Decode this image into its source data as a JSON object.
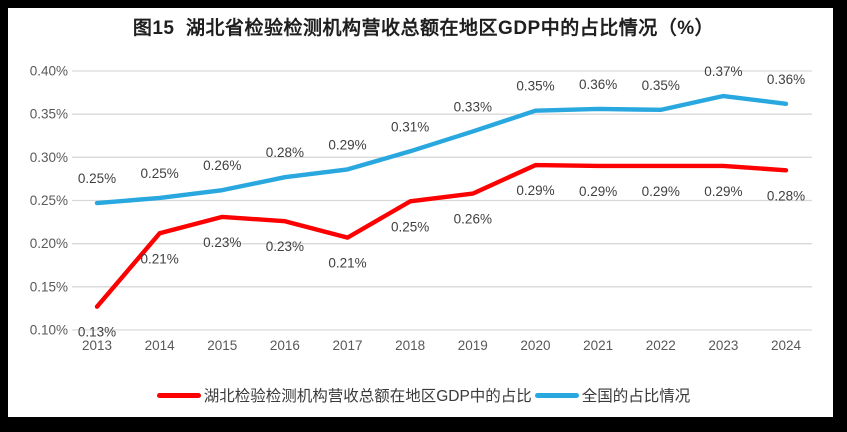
{
  "title": "图15  湖北省检验检测机构营收总额在地区GDP中的占比情况（%）",
  "colors": {
    "grid": "#D9D9D9",
    "axis_text": "#595959",
    "data_label_text": "#404040",
    "series_red": "#FE0000",
    "series_blue": "#29A8E0",
    "frame_border": "#000000",
    "background": "#FFFFFF"
  },
  "chart_data": {
    "type": "line",
    "title": "图15  湖北省检验检测机构营收总额在地区GDP中的占比情况（%）",
    "xlabel": "",
    "ylabel": "",
    "categories": [
      "2013",
      "2014",
      "2015",
      "2016",
      "2017",
      "2018",
      "2019",
      "2020",
      "2021",
      "2022",
      "2023",
      "2024"
    ],
    "y_axis": {
      "min": 0.1,
      "max": 0.4,
      "unit": "%",
      "grid": true,
      "tick_labels": [
        "0.40%",
        "0.35%",
        "0.30%",
        "0.25%",
        "0.20%",
        "0.15%",
        "0.10%"
      ],
      "tick_values": [
        0.4,
        0.35,
        0.3,
        0.25,
        0.2,
        0.15,
        0.1
      ]
    },
    "legend_position": "bottom",
    "series": [
      {
        "name": "湖北检验检测机构营收总额在地区GDP中的占比",
        "color": "#FE0000",
        "label_position": "below",
        "values": [
          0.13,
          0.21,
          0.23,
          0.23,
          0.21,
          0.25,
          0.26,
          0.29,
          0.29,
          0.29,
          0.29,
          0.28
        ],
        "labels": [
          "0.13%",
          "0.21%",
          "0.23%",
          "0.23%",
          "0.21%",
          "0.25%",
          "0.26%",
          "0.29%",
          "0.29%",
          "0.29%",
          "0.29%",
          "0.28%"
        ],
        "plot_values": [
          0.127,
          0.212,
          0.231,
          0.226,
          0.207,
          0.249,
          0.258,
          0.291,
          0.29,
          0.29,
          0.29,
          0.285
        ]
      },
      {
        "name": "全国的占比情况",
        "color": "#29A8E0",
        "label_position": "above",
        "values": [
          0.25,
          0.25,
          0.26,
          0.28,
          0.29,
          0.31,
          0.33,
          0.35,
          0.36,
          0.35,
          0.37,
          0.36
        ],
        "labels": [
          "0.25%",
          "0.25%",
          "0.26%",
          "0.28%",
          "0.29%",
          "0.31%",
          "0.33%",
          "0.35%",
          "0.36%",
          "0.35%",
          "0.37%",
          "0.36%"
        ],
        "plot_values": [
          0.247,
          0.253,
          0.262,
          0.277,
          0.286,
          0.307,
          0.33,
          0.354,
          0.356,
          0.355,
          0.371,
          0.362
        ]
      }
    ]
  }
}
